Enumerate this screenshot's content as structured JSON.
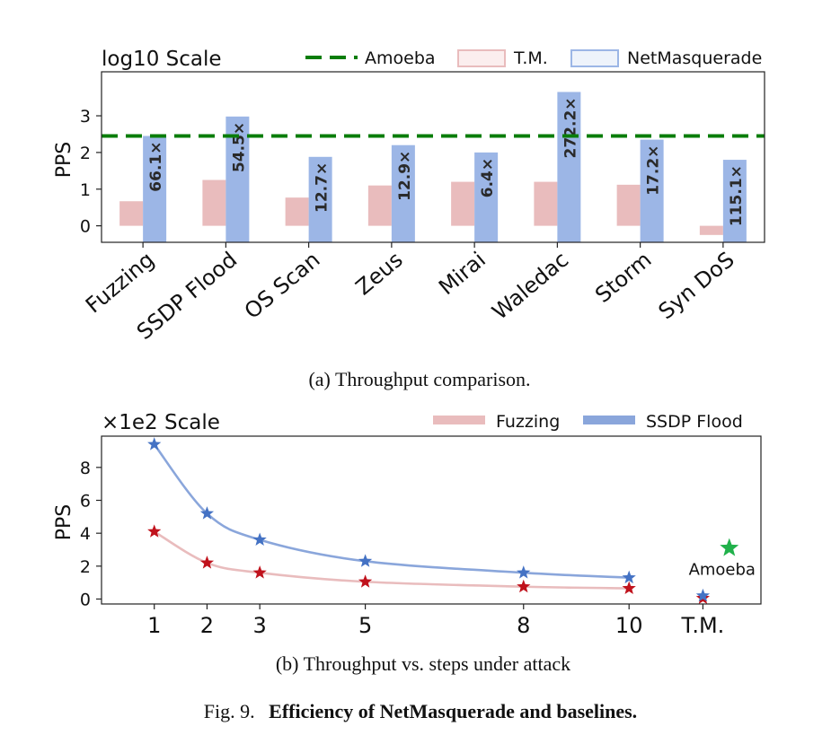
{
  "chart_data": [
    {
      "type": "bar",
      "scale_note": "log10 Scale",
      "ylabel": "PPS",
      "ylim": [
        -0.45,
        4.2
      ],
      "yticks": [
        "0",
        "1",
        "2",
        "3"
      ],
      "ytick_values": [
        0,
        1,
        2,
        3
      ],
      "categories": [
        "Fuzzing",
        "SSDP Flood",
        "OS Scan",
        "Zeus",
        "Mirai",
        "Waledac",
        "Storm",
        "Syn DoS"
      ],
      "reference_line": {
        "name": "Amoeba",
        "value": 2.45,
        "color": "#0a7d0a"
      },
      "series": [
        {
          "name": "T.M.",
          "color": "#e9bcbd",
          "values": [
            0.67,
            1.25,
            0.77,
            1.1,
            1.2,
            1.2,
            1.12,
            -0.25
          ]
        },
        {
          "name": "NetMasquerade",
          "color": "#9cb6e6",
          "values": [
            2.45,
            2.98,
            1.88,
            2.2,
            2.0,
            3.65,
            2.35,
            1.8
          ]
        }
      ],
      "bar_labels": [
        "66.1×",
        "54.5×",
        "12.7×",
        "12.9×",
        "6.4×",
        "272.2×",
        "17.2×",
        "115.1×"
      ],
      "caption": "(a)  Throughput comparison."
    },
    {
      "type": "line",
      "scale_note": "×1e2 Scale",
      "ylabel": "PPS",
      "ylim": [
        -0.3,
        9.9
      ],
      "yticks": [
        "0",
        "2",
        "4",
        "6",
        "8"
      ],
      "ytick_values": [
        0,
        2,
        4,
        6,
        8
      ],
      "x": [
        1,
        2,
        3,
        5,
        8,
        10
      ],
      "xticks": [
        "1",
        "2",
        "3",
        "5",
        "8",
        "10",
        "T.M."
      ],
      "xtick_values": [
        1,
        2,
        3,
        5,
        8,
        10,
        11.4
      ],
      "xlim": [
        0,
        12.5
      ],
      "series": [
        {
          "name": "Fuzzing",
          "color": "#e9bcbd",
          "marker_color": "#c0121c",
          "values": [
            4.1,
            2.2,
            1.6,
            1.05,
            0.75,
            0.65
          ],
          "tm_value": 0.05
        },
        {
          "name": "SSDP Flood",
          "color": "#8aa6db",
          "marker_color": "#4472c4",
          "values": [
            9.4,
            5.2,
            3.6,
            2.3,
            1.6,
            1.3
          ],
          "tm_value": 0.2
        }
      ],
      "amoeba": {
        "label": "Amoeba",
        "x": 11.9,
        "y": 3.1,
        "color": "#21b14b"
      },
      "caption": "(b)  Throughput vs. steps under attack"
    }
  ],
  "figure_caption": {
    "prefix": "Fig. 9.",
    "title": "Efficiency of NetMasquerade and baselines."
  }
}
